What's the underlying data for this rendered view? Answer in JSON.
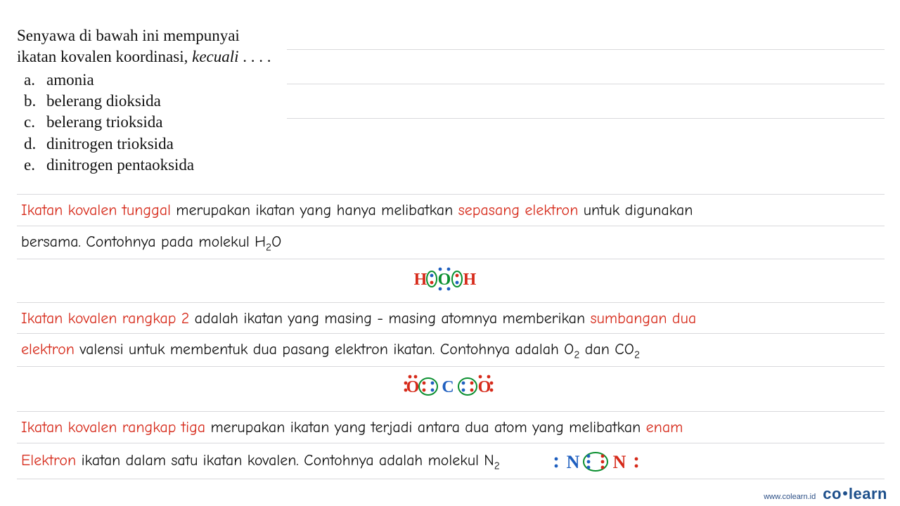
{
  "question": {
    "stem_l1": "Senyawa di bawah ini mempunyai",
    "stem_l2_prefix": "ikatan kovalen koordinasi, ",
    "stem_l2_italic": "kecuali",
    "stem_l2_suffix": " . . . .",
    "options": [
      {
        "label": "a.",
        "text": "amonia"
      },
      {
        "label": "b.",
        "text": "belerang dioksida"
      },
      {
        "label": "c.",
        "text": "belerang trioksida"
      },
      {
        "label": "d.",
        "text": "dinitrogen trioksida"
      },
      {
        "label": "e.",
        "text": "dinitrogen pentaoksida"
      }
    ]
  },
  "explanations": {
    "p1": {
      "hl1": "Ikatan kovalen tunggal",
      "t1": " merupakan ikatan yang hanya melibatkan ",
      "hl2": "sepasang elektron",
      "t2": " untuk digunakan",
      "t3": "bersama. Contohnya pada molekul H",
      "sub": "2",
      "t4": "O"
    },
    "p2": {
      "hl1": "Ikatan kovalen rangkap 2",
      "t1": " adalah ikatan yang masing - masing atomnya memberikan ",
      "hl2": "sumbangan dua",
      "hl3": "elektron",
      "t2": " valensi untuk membentuk dua pasang elektron ikatan. Contohnya adalah O",
      "sub1": "2",
      "t3": " dan CO",
      "sub2": "2"
    },
    "p3": {
      "hl1": "Ikatan kovalen rangkap tiga",
      "t1": " merupakan ikatan yang terjadi antara dua atom yang melibatkan ",
      "hl2": "enam",
      "hl3": "Elektron",
      "t2": " ikatan dalam satu ikatan kovalen. Contohnya adalah molekul N",
      "sub": "2"
    }
  },
  "lewis": {
    "h2o": {
      "atoms": {
        "H": "H",
        "O": "O"
      },
      "colors": {
        "H": "#d62a1a",
        "O_text": "#0a8f2f",
        "dot_blue": "#1f5fbf",
        "dot_red": "#d62a1a",
        "circle": "#0a8f2f"
      }
    },
    "co2": {
      "atoms": {
        "C": "C",
        "O": "O"
      },
      "colors": {
        "O_text": "#d62a1a",
        "C_text": "#1f5fbf",
        "dot_blue": "#1f5fbf",
        "dot_red": "#d62a1a",
        "circle": "#0a8f2f"
      }
    },
    "n2": {
      "atoms": {
        "N": "N"
      },
      "colors": {
        "N_left": "#1f5fbf",
        "N_right": "#d62a1a",
        "dot_blue": "#1f5fbf",
        "dot_red": "#d62a1a",
        "circle": "#0a8f2f"
      }
    }
  },
  "footer": {
    "site": "www.colearn.id",
    "logo_a": "co",
    "logo_b": "learn"
  }
}
